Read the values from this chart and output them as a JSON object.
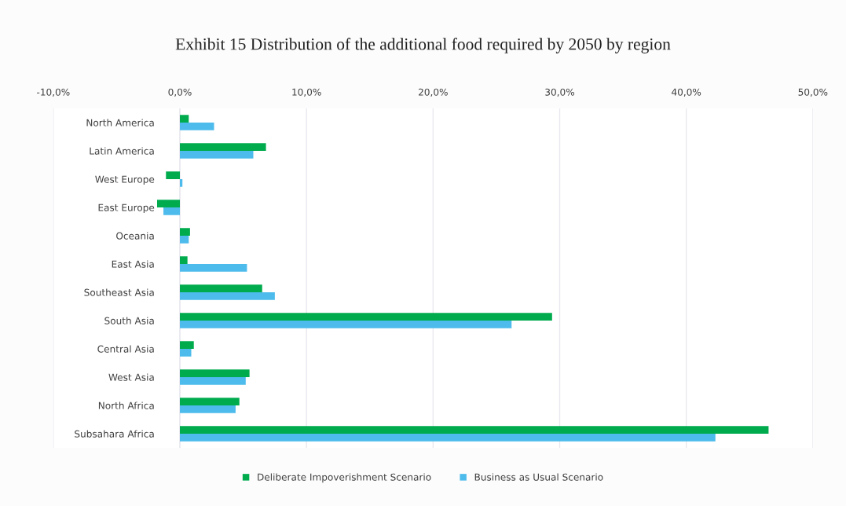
{
  "chart_data": {
    "type": "bar",
    "orientation": "horizontal",
    "title": "Exhibit 15 Distribution of the additional food required by 2050 by region",
    "categories": [
      "North America",
      "Latin America",
      "West Europe",
      "East Europe",
      "Oceania",
      "East Asia",
      "Southeast Asia",
      "South Asia",
      "Central Asia",
      "West Asia",
      "North Africa",
      "Subsahara Africa"
    ],
    "series": [
      {
        "name": "Deliberate Impoverishment Scenario",
        "color": "#00ab4e",
        "values": [
          0.7,
          6.8,
          -1.1,
          -1.8,
          0.8,
          0.6,
          6.5,
          29.4,
          1.1,
          5.5,
          4.7,
          46.5
        ]
      },
      {
        "name": "Business as Usual Scenario",
        "color": "#4dbbeb",
        "values": [
          2.7,
          5.8,
          0.2,
          -1.3,
          0.7,
          5.3,
          7.5,
          26.2,
          0.9,
          5.2,
          4.4,
          42.3
        ]
      }
    ],
    "xlim": [
      -10,
      50
    ],
    "xticks": [
      {
        "value": -10,
        "label": "-10,0%"
      },
      {
        "value": 0,
        "label": "0,0%"
      },
      {
        "value": 10,
        "label": "10,0%"
      },
      {
        "value": 20,
        "label": "20,0%"
      },
      {
        "value": 30,
        "label": "30,0%"
      },
      {
        "value": 40,
        "label": "40,0%"
      },
      {
        "value": 50,
        "label": "50,0%"
      }
    ],
    "grid": "x",
    "legend": "bottom"
  }
}
